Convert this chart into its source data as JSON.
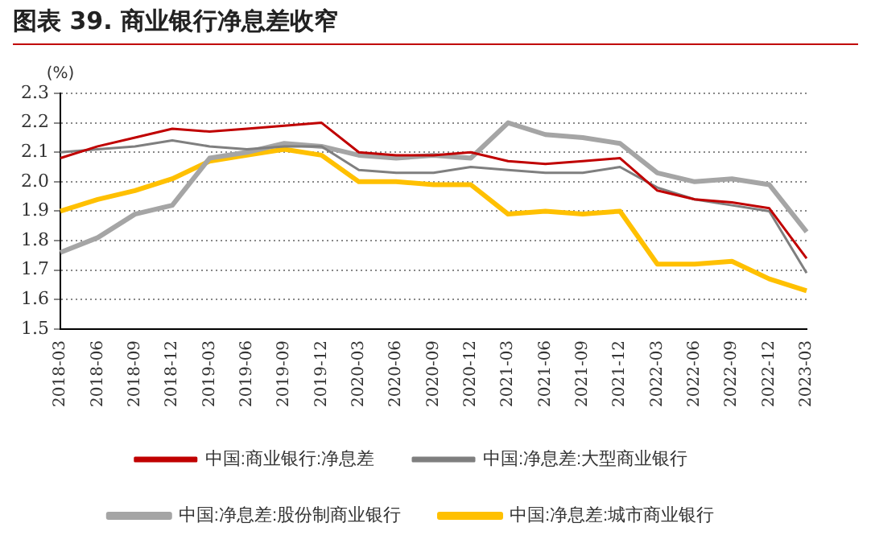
{
  "chart_data": {
    "type": "line",
    "title": "图表 39. 商业银行净息差收窄",
    "ylabel": "(%)",
    "categories": [
      "2018-03",
      "2018-06",
      "2018-09",
      "2018-12",
      "2019-03",
      "2019-06",
      "2019-09",
      "2019-12",
      "2020-03",
      "2020-06",
      "2020-09",
      "2020-12",
      "2021-03",
      "2021-06",
      "2021-09",
      "2021-12",
      "2022-03",
      "2022-06",
      "2022-09",
      "2022-12",
      "2023-03"
    ],
    "series": [
      {
        "name": "中国:商业银行:净息差",
        "color": "#c00000",
        "values": [
          2.08,
          2.12,
          2.15,
          2.18,
          2.17,
          2.18,
          2.19,
          2.2,
          2.1,
          2.09,
          2.09,
          2.1,
          2.07,
          2.06,
          2.07,
          2.08,
          1.97,
          1.94,
          1.93,
          1.91,
          1.74
        ]
      },
      {
        "name": "中国:净息差:大型商业银行",
        "color": "#7f7f7f",
        "values": [
          2.1,
          2.11,
          2.12,
          2.14,
          2.12,
          2.11,
          2.12,
          2.12,
          2.04,
          2.03,
          2.03,
          2.05,
          2.04,
          2.03,
          2.03,
          2.05,
          1.98,
          1.94,
          1.92,
          1.9,
          1.69
        ]
      },
      {
        "name": "中国:净息差:股份制商业银行",
        "color": "#a5a5a5",
        "values": [
          1.76,
          1.81,
          1.89,
          1.92,
          2.08,
          2.1,
          2.13,
          2.12,
          2.09,
          2.08,
          2.09,
          2.08,
          2.2,
          2.16,
          2.15,
          2.13,
          2.03,
          2.0,
          2.01,
          1.99,
          1.83
        ]
      },
      {
        "name": "中国:净息差:城市商业银行",
        "color": "#ffc000",
        "values": [
          1.9,
          1.94,
          1.97,
          2.01,
          2.07,
          2.09,
          2.11,
          2.09,
          2.0,
          2.0,
          1.99,
          1.99,
          1.89,
          1.9,
          1.89,
          1.9,
          1.72,
          1.72,
          1.73,
          1.67,
          1.63
        ]
      }
    ],
    "ylim": [
      1.5,
      2.3
    ],
    "yticks": [
      {
        "value": 1.5,
        "label": "1.5"
      },
      {
        "value": 1.6,
        "label": "1.6"
      },
      {
        "value": 1.7,
        "label": "1.7"
      },
      {
        "value": 1.8,
        "label": "1.8"
      },
      {
        "value": 1.9,
        "label": "1.9"
      },
      {
        "value": 2.0,
        "label": "2.0"
      },
      {
        "value": 2.1,
        "label": "2.1"
      },
      {
        "value": 2.2,
        "label": "2.2"
      },
      {
        "value": 2.3,
        "label": "2.3"
      }
    ],
    "grid": "y",
    "legend": "bottom",
    "marker": "none",
    "line_style": "solid"
  }
}
